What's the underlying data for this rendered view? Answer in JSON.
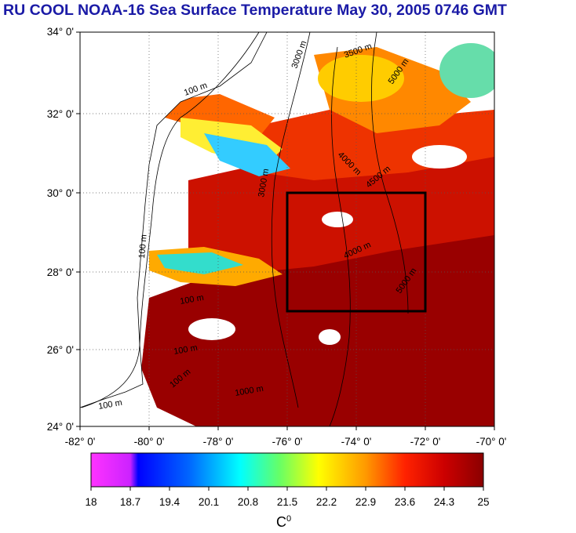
{
  "title": "RU COOL  NOAA-16 Sea Surface Temperature May 30, 2005 0746 GMT",
  "lat_labels": [
    "34° 0'",
    "32° 0'",
    "30° 0'",
    "28° 0'",
    "26° 0'",
    "24° 0'"
  ],
  "lon_labels": [
    "-82° 0'",
    "-80° 0'",
    "-78° 0'",
    "-76° 0'",
    "-74° 0'",
    "-72° 0'",
    "-70° 0'"
  ],
  "contour_labels": [
    "100 m",
    "100 m",
    "100 m",
    "100 m",
    "100 m",
    "100 m",
    "1000 m",
    "3000 m",
    "3000 m",
    "3500 m",
    "4000 m",
    "4500 m",
    "5000 m",
    "5000 m",
    "4000 m"
  ],
  "colorbar": {
    "ticks": [
      "18",
      "18.7",
      "19.4",
      "20.1",
      "20.8",
      "21.5",
      "22.2",
      "22.9",
      "23.6",
      "24.3",
      "25"
    ],
    "unit_base": "C",
    "unit_sup": "0",
    "colors": [
      "#ff33ff",
      "#cc33ff",
      "#0000ff",
      "#0055ff",
      "#0099ff",
      "#00ddff",
      "#33ffcc",
      "#99ff33",
      "#ffff00",
      "#ffcc00",
      "#ff9900",
      "#ff5500",
      "#ff0000",
      "#cc0000",
      "#990000"
    ]
  },
  "study_box": {
    "lon_min": -76,
    "lon_max": -72,
    "lat_min": 27,
    "lat_max": 30
  }
}
